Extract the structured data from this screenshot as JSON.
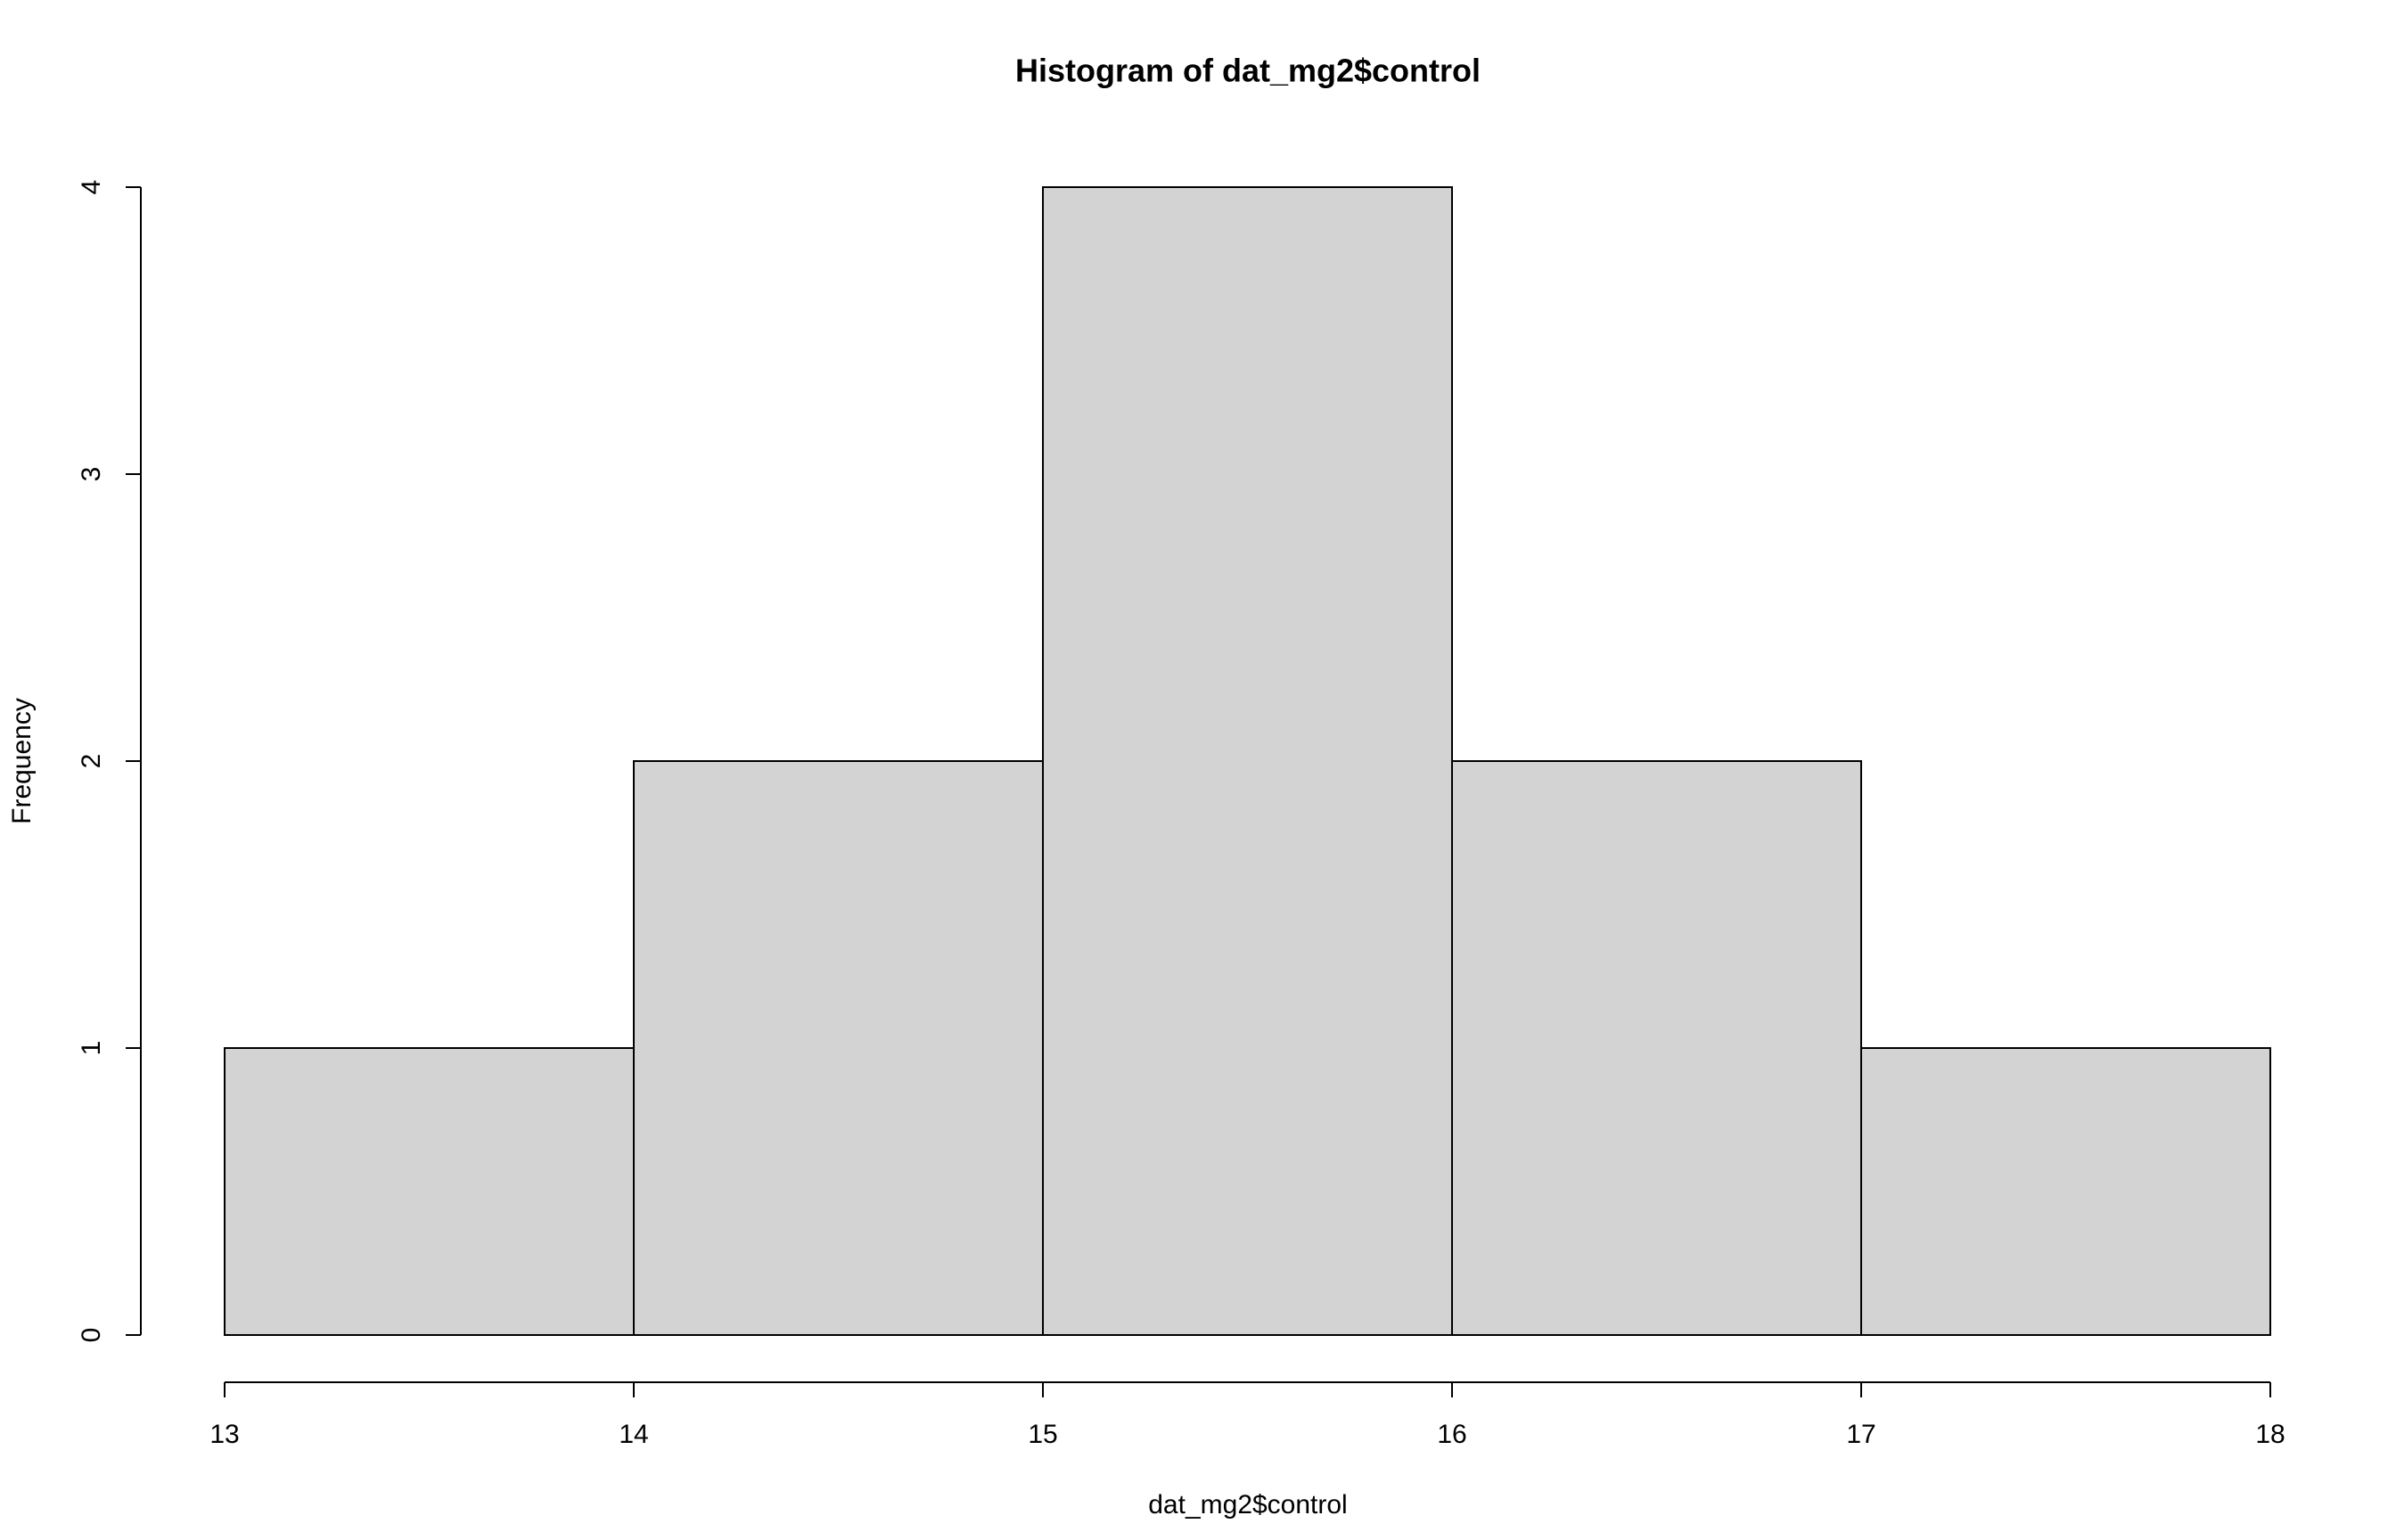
{
  "chart_data": {
    "type": "histogram",
    "title": "Histogram of dat_mg2$control",
    "x_label": "dat_mg2$control",
    "y_label": "Frequency",
    "bins": [
      13,
      14,
      15,
      16,
      17,
      18
    ],
    "values": [
      1,
      2,
      4,
      2,
      1
    ],
    "color": "#d3d3d3",
    "xlim": [
      13,
      18
    ],
    "xticks": [
      13,
      14,
      15,
      16,
      17,
      18
    ],
    "ylim": [
      0,
      4
    ],
    "yticks": [
      0,
      1,
      2,
      3,
      4
    ],
    "grid": false
  }
}
